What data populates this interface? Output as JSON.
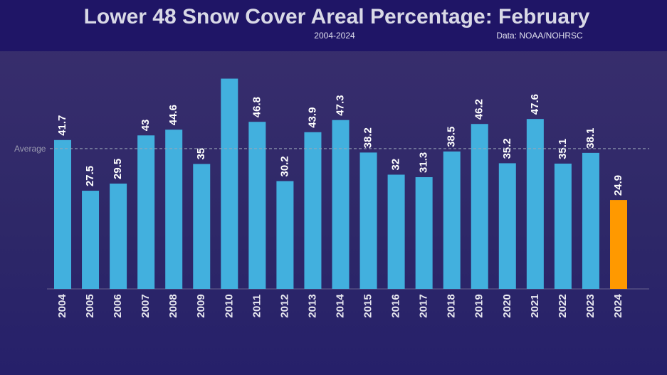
{
  "chart_data": {
    "type": "bar",
    "title": "Lower 48 Snow Cover Areal Percentage: February",
    "subtitle": "2004-2024",
    "source": "Data: NOAA/NOHRSC",
    "categories": [
      "2004",
      "2005",
      "2006",
      "2007",
      "2008",
      "2009",
      "2010",
      "2011",
      "2012",
      "2013",
      "2014",
      "2015",
      "2016",
      "2017",
      "2018",
      "2019",
      "2020",
      "2021",
      "2022",
      "2023",
      "2024"
    ],
    "values": [
      41.7,
      27.5,
      29.5,
      43,
      44.6,
      35,
      58.9,
      46.8,
      30.2,
      43.9,
      47.3,
      38.2,
      32,
      31.3,
      38.5,
      46.2,
      35.2,
      47.6,
      35.1,
      38.1,
      24.9
    ],
    "value_labels": [
      "41.7",
      "27.5",
      "29.5",
      "43",
      "44.6",
      "35",
      null,
      "46.8",
      "30.2",
      "43.9",
      "47.3",
      "38.2",
      "32",
      "31.3",
      "38.5",
      "46.2",
      "35.2",
      "47.6",
      "35.1",
      "38.1",
      "24.9"
    ],
    "colors": [
      "#42b0de",
      "#42b0de",
      "#42b0de",
      "#42b0de",
      "#42b0de",
      "#42b0de",
      "#42b0de",
      "#42b0de",
      "#42b0de",
      "#42b0de",
      "#42b0de",
      "#42b0de",
      "#42b0de",
      "#42b0de",
      "#42b0de",
      "#42b0de",
      "#42b0de",
      "#42b0de",
      "#42b0de",
      "#42b0de",
      "#ff9900"
    ],
    "average": {
      "label": "Average",
      "value": 39.3
    },
    "ylim": [
      0,
      60
    ]
  }
}
